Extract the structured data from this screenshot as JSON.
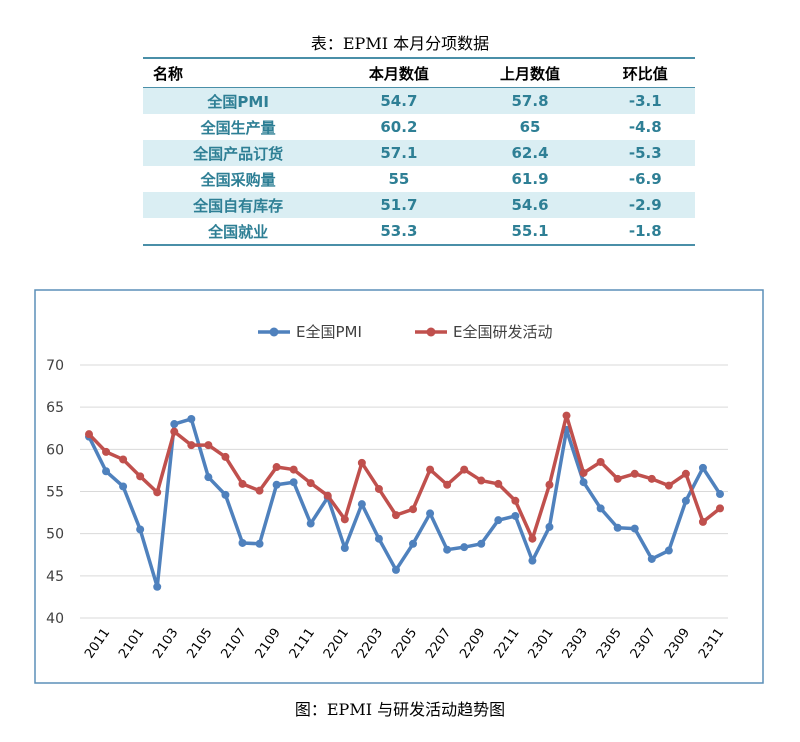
{
  "table_title": "表：EPMI 本月分项数据",
  "table": {
    "headers": [
      "名称",
      "本月数值",
      "上月数值",
      "环比值"
    ],
    "rows": [
      [
        "全国PMI",
        54.7,
        57.8,
        -3.1
      ],
      [
        "全国生产量",
        60.2,
        65,
        -4.8
      ],
      [
        "全国产品订货",
        57.1,
        62.4,
        -5.3
      ],
      [
        "全国采购量",
        55,
        61.9,
        -6.9
      ],
      [
        "全国自有库存",
        51.7,
        54.6,
        -2.9
      ],
      [
        "全国就业",
        53.3,
        55.1,
        -1.8
      ]
    ]
  },
  "chart_data": {
    "type": "line",
    "categories": [
      null,
      "2011",
      null,
      "2101",
      null,
      "2103",
      null,
      "2105",
      null,
      "2107",
      null,
      "2109",
      null,
      "2111",
      null,
      "2201",
      null,
      "2203",
      null,
      "2205",
      null,
      "2207",
      null,
      "2209",
      null,
      "2211",
      null,
      "2301",
      null,
      "2303",
      null,
      "2305",
      null,
      "2307",
      null,
      "2309",
      null,
      "2311"
    ],
    "series": [
      {
        "name": "E全国PMI",
        "color": "#4f81bd",
        "values": [
          61.5,
          57.4,
          55.6,
          50.5,
          43.7,
          63.0,
          63.6,
          56.7,
          54.6,
          48.9,
          48.8,
          55.8,
          56.1,
          51.2,
          54.3,
          48.3,
          53.5,
          49.4,
          45.7,
          48.8,
          52.4,
          48.1,
          48.4,
          48.8,
          51.6,
          52.1,
          46.8,
          50.8,
          62.3,
          56.1,
          53.0,
          50.7,
          50.6,
          47.0,
          48.0,
          53.9,
          57.8,
          54.7
        ]
      },
      {
        "name": "E全国研发活动",
        "color": "#c0504d",
        "values": [
          61.8,
          59.7,
          58.8,
          56.8,
          54.9,
          62.1,
          60.5,
          60.5,
          59.1,
          55.9,
          55.1,
          57.9,
          57.6,
          56.0,
          54.5,
          51.7,
          58.4,
          55.3,
          52.2,
          52.9,
          57.6,
          55.8,
          57.6,
          56.3,
          55.9,
          53.9,
          49.4,
          55.8,
          64.0,
          57.2,
          58.5,
          56.5,
          57.1,
          56.5,
          55.7,
          57.1,
          51.4,
          53.0
        ]
      }
    ],
    "ylim": [
      40,
      70
    ],
    "yticks": [
      40,
      45,
      50,
      55,
      60,
      65,
      70
    ],
    "grid": true,
    "legend": "top"
  },
  "caption": "图：EPMI 与研发活动趋势图"
}
